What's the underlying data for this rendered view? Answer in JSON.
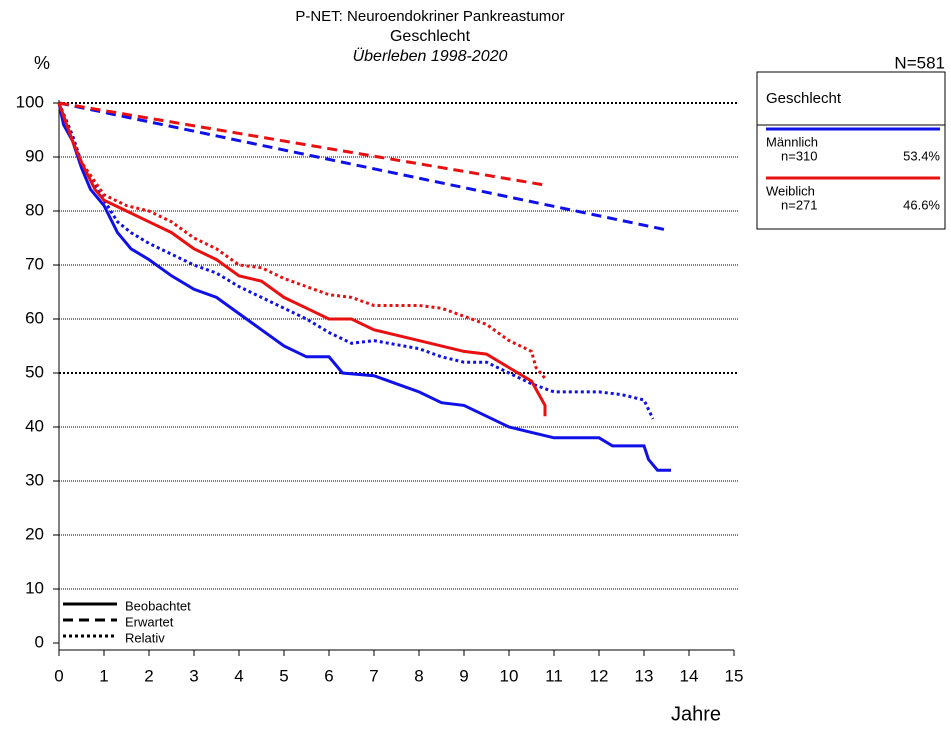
{
  "chart_data": {
    "type": "line",
    "title": "P-NET: Neuroendokriner Pankreastumor",
    "subtitle": "Geschlecht",
    "subtitle2": "Überleben 1998-2020",
    "y_label": "%",
    "x_label": "Jahre",
    "annotation": "N=581",
    "legend_title": "Geschlecht",
    "xlim": [
      0,
      15
    ],
    "ylim": [
      0,
      100
    ],
    "xticks": [
      0,
      1,
      2,
      3,
      4,
      5,
      6,
      7,
      8,
      9,
      10,
      11,
      12,
      13,
      14,
      15
    ],
    "yticks": [
      0,
      10,
      20,
      30,
      40,
      50,
      60,
      70,
      80,
      90,
      100
    ],
    "grid": true,
    "grid_emphasis": [
      50,
      100
    ],
    "line_styles": [
      {
        "name": "Beobachtet",
        "dash": "solid"
      },
      {
        "name": "Erwartet",
        "dash": "dashed"
      },
      {
        "name": "Relativ",
        "dash": "dotted"
      }
    ],
    "series": [
      {
        "name": "Männlich",
        "color": "#1010e8",
        "n_label": "n=310",
        "share": 53.4,
        "share_label": "53.4%",
        "curves": [
          {
            "x": [
              0,
              0.1,
              0.3,
              0.5,
              0.7,
              1,
              1.3,
              1.6,
              2,
              2.5,
              3,
              3.5,
              4,
              4.5,
              5,
              5.5,
              6,
              6.3,
              7,
              7.5,
              8,
              8.5,
              9,
              9.5,
              10,
              10.5,
              11,
              12,
              12.3,
              13,
              13.1,
              13.3,
              13.6
            ],
            "values": [
              100,
              96,
              93,
              88,
              84,
              81,
              76,
              73,
              71,
              68,
              65.5,
              64,
              61,
              58,
              55,
              53,
              53,
              50,
              49.5,
              48,
              46.5,
              44.5,
              44,
              42,
              40,
              39,
              38,
              38,
              36.5,
              36.5,
              34,
              32,
              32
            ]
          },
          {
            "x": [
              0,
              13.5
            ],
            "values": [
              100,
              76.5
            ]
          },
          {
            "x": [
              0,
              0.3,
              0.5,
              1,
              1.3,
              1.6,
              2,
              2.5,
              3,
              3.5,
              4,
              4.5,
              5,
              5.5,
              6,
              6.5,
              7,
              8,
              8.5,
              9,
              9.5,
              10,
              10.5,
              11,
              12,
              12.5,
              13,
              13.2
            ],
            "values": [
              100,
              94,
              89,
              82,
              78,
              76,
              74,
              72,
              70,
              68.5,
              66,
              64,
              62,
              60,
              57.5,
              55.5,
              56,
              54.5,
              53,
              52,
              52,
              50,
              48,
              46.5,
              46.5,
              46,
              45,
              41.5
            ]
          }
        ]
      },
      {
        "name": "Weiblich",
        "color": "#e81010",
        "n_label": "n=271",
        "share": 46.6,
        "share_label": "46.6%",
        "curves": [
          {
            "x": [
              0,
              0.3,
              0.5,
              0.8,
              1,
              1.5,
              2,
              2.5,
              3,
              3.5,
              4,
              4.5,
              5,
              5.5,
              6,
              6.5,
              7,
              7.5,
              8,
              9,
              9.5,
              10,
              10.5,
              10.8,
              10.8
            ],
            "values": [
              100,
              93,
              89,
              84,
              82,
              80,
              78,
              76,
              73,
              71,
              68,
              67,
              64,
              62,
              60,
              60,
              58,
              57,
              56,
              54,
              53.5,
              51,
              48.5,
              44,
              42
            ]
          },
          {
            "x": [
              0,
              10.8
            ],
            "values": [
              100,
              84.8
            ]
          },
          {
            "x": [
              0,
              0.3,
              0.5,
              1,
              1.5,
              2,
              2.5,
              3,
              3.5,
              4,
              4.5,
              5,
              5.5,
              6,
              6.5,
              7,
              8,
              8.5,
              9,
              9.5,
              10,
              10.5,
              10.6,
              10.8
            ],
            "values": [
              100,
              93,
              89,
              83,
              81,
              80,
              78,
              75,
              73,
              70,
              69.5,
              67.5,
              66,
              64.5,
              64,
              62.5,
              62.5,
              62,
              60.5,
              59,
              56,
              54,
              51,
              49
            ]
          }
        ]
      }
    ]
  }
}
